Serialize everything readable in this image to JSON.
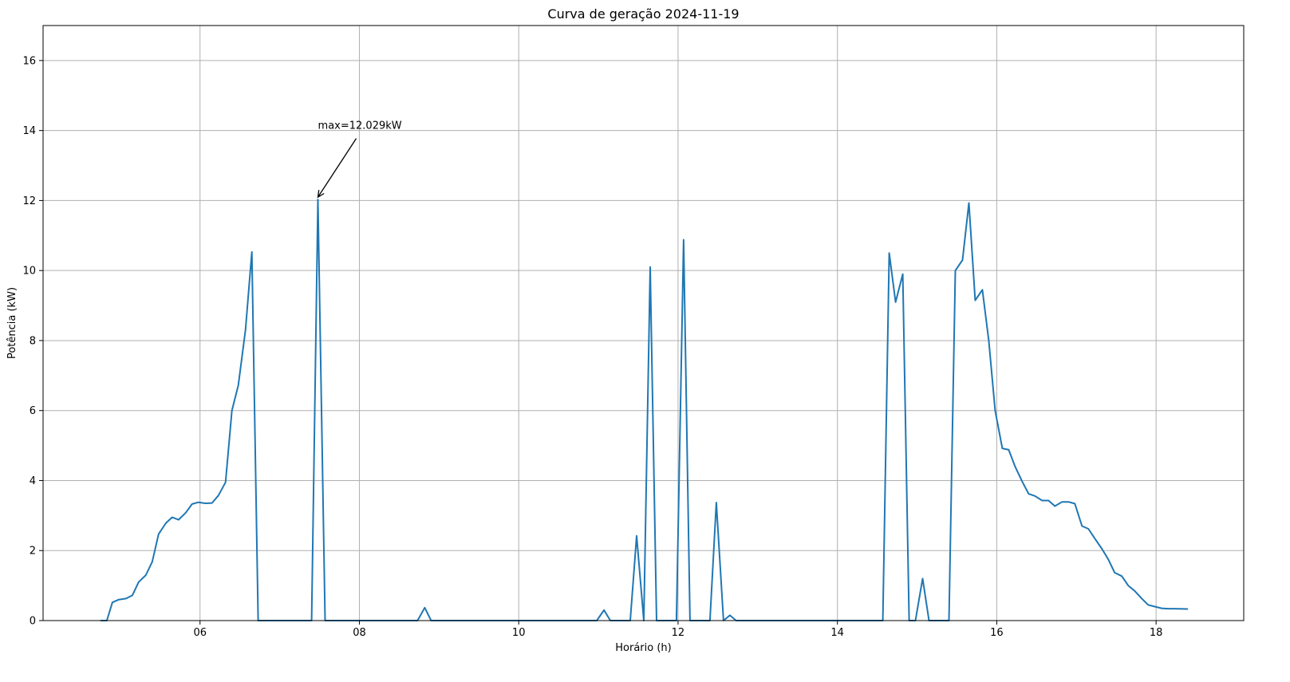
{
  "chart_data": {
    "type": "line",
    "title": "Curva de geração 2024-11-19",
    "xlabel": "Horário (h)",
    "ylabel": "Potência (kW)",
    "xlim": [
      4.03,
      19.1
    ],
    "ylim": [
      0,
      17
    ],
    "grid": true,
    "x_ticks": [
      6,
      8,
      10,
      12,
      14,
      16,
      18
    ],
    "x_tick_labels": [
      "06",
      "08",
      "10",
      "12",
      "14",
      "16",
      "18"
    ],
    "y_ticks": [
      0,
      2,
      4,
      6,
      8,
      10,
      12,
      14,
      16
    ],
    "y_tick_labels": [
      "0",
      "2",
      "4",
      "6",
      "8",
      "10",
      "12",
      "14",
      "16"
    ],
    "colors": {
      "line": "#1f77b4",
      "grid": "#b0b0b0"
    },
    "annotation": {
      "text": "max=12.029kW",
      "x": 7.48,
      "y": 12.029,
      "text_x": 7.48,
      "text_y": 14.0
    },
    "series": [
      {
        "x": [
          4.75,
          4.83,
          4.9,
          4.98,
          5.07,
          5.15,
          5.23,
          5.32,
          5.4,
          5.48,
          5.57,
          5.65,
          5.73,
          5.82,
          5.9,
          5.98,
          6.07,
          6.15,
          6.23,
          6.32,
          6.4,
          6.48,
          6.57,
          6.65,
          6.73,
          6.82,
          6.9,
          6.98,
          7.07,
          7.15,
          7.23,
          7.32,
          7.4,
          7.48,
          7.57,
          7.65,
          7.73,
          7.82,
          7.9,
          7.98,
          8.07,
          8.15,
          8.23,
          8.32,
          8.4,
          8.48,
          8.57,
          8.65,
          8.73,
          8.82,
          8.9,
          8.98,
          9.07,
          9.15,
          9.23,
          9.32,
          9.4,
          9.48,
          9.57,
          9.65,
          9.73,
          9.82,
          9.9,
          9.98,
          10.07,
          10.15,
          10.23,
          10.32,
          10.4,
          10.48,
          10.57,
          10.65,
          10.73,
          10.82,
          10.9,
          10.98,
          11.07,
          11.15,
          11.23,
          11.32,
          11.4,
          11.48,
          11.57,
          11.65,
          11.73,
          11.82,
          11.9,
          11.98,
          12.07,
          12.15,
          12.23,
          12.32,
          12.4,
          12.48,
          12.57,
          12.65,
          12.73,
          12.82,
          12.9,
          12.98,
          13.07,
          13.15,
          13.23,
          13.32,
          13.4,
          13.48,
          13.57,
          13.65,
          13.73,
          13.82,
          13.9,
          13.98,
          14.07,
          14.15,
          14.23,
          14.32,
          14.4,
          14.48,
          14.57,
          14.65,
          14.73,
          14.82,
          14.9,
          14.98,
          15.07,
          15.15,
          15.23,
          15.32,
          15.4,
          15.48,
          15.57,
          15.65,
          15.73,
          15.82,
          15.9,
          15.98,
          16.07,
          16.15,
          16.23,
          16.32,
          16.4,
          16.48,
          16.57,
          16.65,
          16.73,
          16.82,
          16.9,
          16.98,
          17.07,
          17.15,
          17.23,
          17.32,
          17.4,
          17.48,
          17.57,
          17.65,
          17.73,
          17.82,
          17.9,
          17.98,
          18.07,
          18.15,
          18.23,
          18.4
        ],
        "values": [
          0,
          0,
          0.52,
          0.6,
          0.63,
          0.72,
          1.1,
          1.3,
          1.68,
          2.47,
          2.78,
          2.95,
          2.88,
          3.08,
          3.33,
          3.38,
          3.35,
          3.36,
          3.57,
          3.95,
          6.0,
          6.72,
          8.3,
          10.53,
          0,
          0,
          0,
          0,
          0,
          0,
          0,
          0,
          0,
          12.029,
          0,
          0,
          0,
          0,
          0,
          0,
          0,
          0,
          0,
          0,
          0,
          0,
          0,
          0,
          0,
          0.37,
          0,
          0,
          0,
          0,
          0,
          0,
          0,
          0,
          0,
          0,
          0,
          0,
          0,
          0,
          0,
          0,
          0,
          0,
          0,
          0,
          0,
          0,
          0,
          0,
          0,
          0,
          0.3,
          0,
          0,
          0,
          0,
          2.42,
          0,
          10.1,
          0,
          0,
          0,
          0,
          10.88,
          0,
          0,
          0,
          0,
          3.37,
          0,
          0.15,
          0,
          0,
          0,
          0,
          0,
          0,
          0,
          0,
          0,
          0,
          0,
          0,
          0,
          0,
          0,
          0,
          0,
          0,
          0,
          0,
          0,
          0,
          0,
          10.5,
          9.1,
          9.9,
          0,
          0,
          1.2,
          0,
          0,
          0,
          0,
          10.0,
          10.3,
          11.93,
          9.15,
          9.45,
          8.0,
          6.0,
          4.92,
          4.88,
          4.4,
          3.97,
          3.62,
          3.56,
          3.43,
          3.43,
          3.27,
          3.39,
          3.39,
          3.34,
          2.7,
          2.62,
          2.35,
          2.05,
          1.75,
          1.37,
          1.27,
          1.0,
          0.85,
          0.63,
          0.45,
          0.4,
          0.35,
          0.34,
          0.34,
          0.33
        ]
      }
    ]
  }
}
